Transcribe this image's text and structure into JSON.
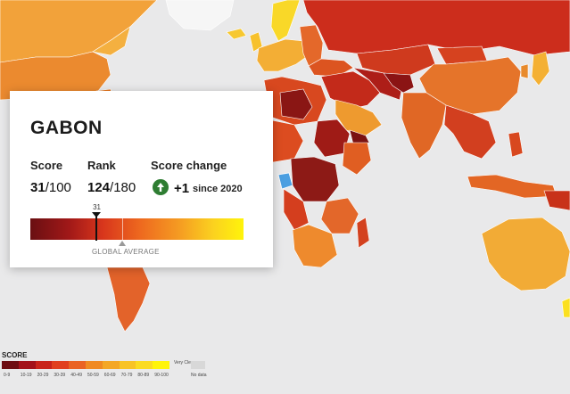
{
  "tooltip": {
    "country": "GABON",
    "score_label": "Score",
    "score": "31",
    "score_max": "/100",
    "rank_label": "Rank",
    "rank": "124",
    "rank_max": "/180",
    "change_label": "Score change",
    "change_value": "+1",
    "change_since": "since 2020",
    "change_icon": "arrow-up-icon",
    "scale_marker": "31",
    "score_fraction": 0.31,
    "global_average_label": "GLOBAL AVERAGE",
    "global_average_fraction": 0.43
  },
  "legend": {
    "title": "SCORE",
    "items": [
      {
        "range": "0-9",
        "color": "#6e0d12"
      },
      {
        "range": "10-19",
        "color": "#a3121a"
      },
      {
        "range": "20-29",
        "color": "#c9241b"
      },
      {
        "range": "30-39",
        "color": "#e1401f"
      },
      {
        "range": "40-49",
        "color": "#ea6324"
      },
      {
        "range": "50-59",
        "color": "#f08a23"
      },
      {
        "range": "60-69",
        "color": "#f4a726"
      },
      {
        "range": "70-79",
        "color": "#f8c326"
      },
      {
        "range": "80-89",
        "color": "#fbdb22"
      },
      {
        "range": "90-100",
        "color": "#fff40a"
      }
    ],
    "very_clean": "Very Clean",
    "no_data": "No data",
    "no_data_color": "#d8d8d8"
  },
  "colors": {
    "ocean": "#e9e9ea",
    "selected_country": "#4b9fe1",
    "positive_change": "#2e7d32"
  }
}
